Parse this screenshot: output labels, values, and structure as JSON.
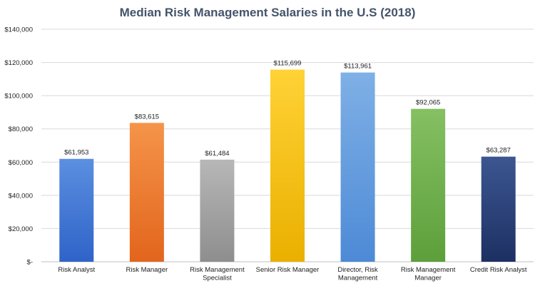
{
  "chart_data": {
    "type": "bar",
    "title": "Median Risk Management Salaries in the U.S (2018)",
    "xlabel": "",
    "ylabel": "",
    "ylim": [
      0,
      140000
    ],
    "y_ticks": [
      {
        "value": 0,
        "label": "$-"
      },
      {
        "value": 20000,
        "label": "$20,000"
      },
      {
        "value": 40000,
        "label": "$40,000"
      },
      {
        "value": 60000,
        "label": "$60,000"
      },
      {
        "value": 80000,
        "label": "$80,000"
      },
      {
        "value": 100000,
        "label": "$100,000"
      },
      {
        "value": 120000,
        "label": "$120,000"
      },
      {
        "value": 140000,
        "label": "$140,000"
      }
    ],
    "grid": true,
    "legend": "none",
    "categories": [
      [
        "Risk Analyst"
      ],
      [
        "Risk Manager"
      ],
      [
        "Risk Management",
        "Specialist"
      ],
      [
        "Senior Risk Manager"
      ],
      [
        "Director, Risk",
        "Management"
      ],
      [
        "Risk Management",
        "Manager"
      ],
      [
        "Credit Risk Analyst"
      ]
    ],
    "values": [
      61953,
      83615,
      61484,
      115699,
      113961,
      92065,
      63287
    ],
    "data_labels": [
      "$61,953",
      "$83,615",
      "$61,484",
      "$115,699",
      "$113,961",
      "$92,065",
      "$63,287"
    ],
    "bar_colors": [
      [
        "#5b8fe0",
        "#2f63c8"
      ],
      [
        "#f5944a",
        "#e2651c"
      ],
      [
        "#b7b7b7",
        "#8e8e8e"
      ],
      [
        "#ffd236",
        "#eab000"
      ],
      [
        "#7fb0e6",
        "#4d8ad6"
      ],
      [
        "#85c062",
        "#5d9f3b"
      ],
      [
        "#3c5691",
        "#1d3063"
      ]
    ],
    "colors": {
      "title": "#44546a",
      "grid": "#d9d9d9",
      "axis": "#bfbfbf",
      "text": "#222222"
    }
  }
}
